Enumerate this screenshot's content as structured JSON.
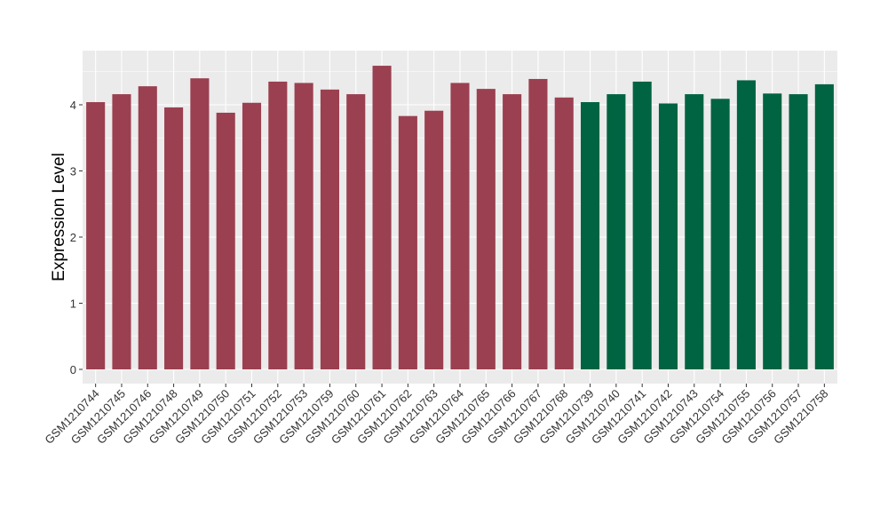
{
  "chart_data": {
    "type": "bar",
    "ylabel": "Expression Level",
    "xlabel": "",
    "ylim": [
      0,
      4.8
    ],
    "yticks": [
      0,
      1,
      2,
      3,
      4
    ],
    "grid": true,
    "legend": "none",
    "colors": {
      "group1": "#9b4050",
      "group2": "#006442",
      "panel": "#ebebeb",
      "gridline": "#ffffff"
    },
    "categories": [
      "GSM1210744",
      "GSM1210745",
      "GSM1210746",
      "GSM1210748",
      "GSM1210749",
      "GSM1210750",
      "GSM1210751",
      "GSM1210752",
      "GSM1210753",
      "GSM1210759",
      "GSM1210760",
      "GSM1210761",
      "GSM1210762",
      "GSM1210763",
      "GSM1210764",
      "GSM1210765",
      "GSM1210766",
      "GSM1210767",
      "GSM1210768",
      "GSM1210739",
      "GSM1210740",
      "GSM1210741",
      "GSM1210742",
      "GSM1210743",
      "GSM1210754",
      "GSM1210755",
      "GSM1210756",
      "GSM1210757",
      "GSM1210758"
    ],
    "values": [
      4.04,
      4.16,
      4.28,
      3.96,
      4.4,
      3.88,
      4.03,
      4.35,
      4.33,
      4.23,
      4.16,
      4.59,
      3.83,
      3.91,
      4.33,
      4.24,
      4.16,
      4.39,
      4.11,
      4.04,
      4.16,
      4.35,
      4.02,
      4.16,
      4.09,
      4.37,
      4.17,
      4.16,
      4.31
    ],
    "groups": [
      "group1",
      "group1",
      "group1",
      "group1",
      "group1",
      "group1",
      "group1",
      "group1",
      "group1",
      "group1",
      "group1",
      "group1",
      "group1",
      "group1",
      "group1",
      "group1",
      "group1",
      "group1",
      "group1",
      "group2",
      "group2",
      "group2",
      "group2",
      "group2",
      "group2",
      "group2",
      "group2",
      "group2",
      "group2"
    ]
  }
}
